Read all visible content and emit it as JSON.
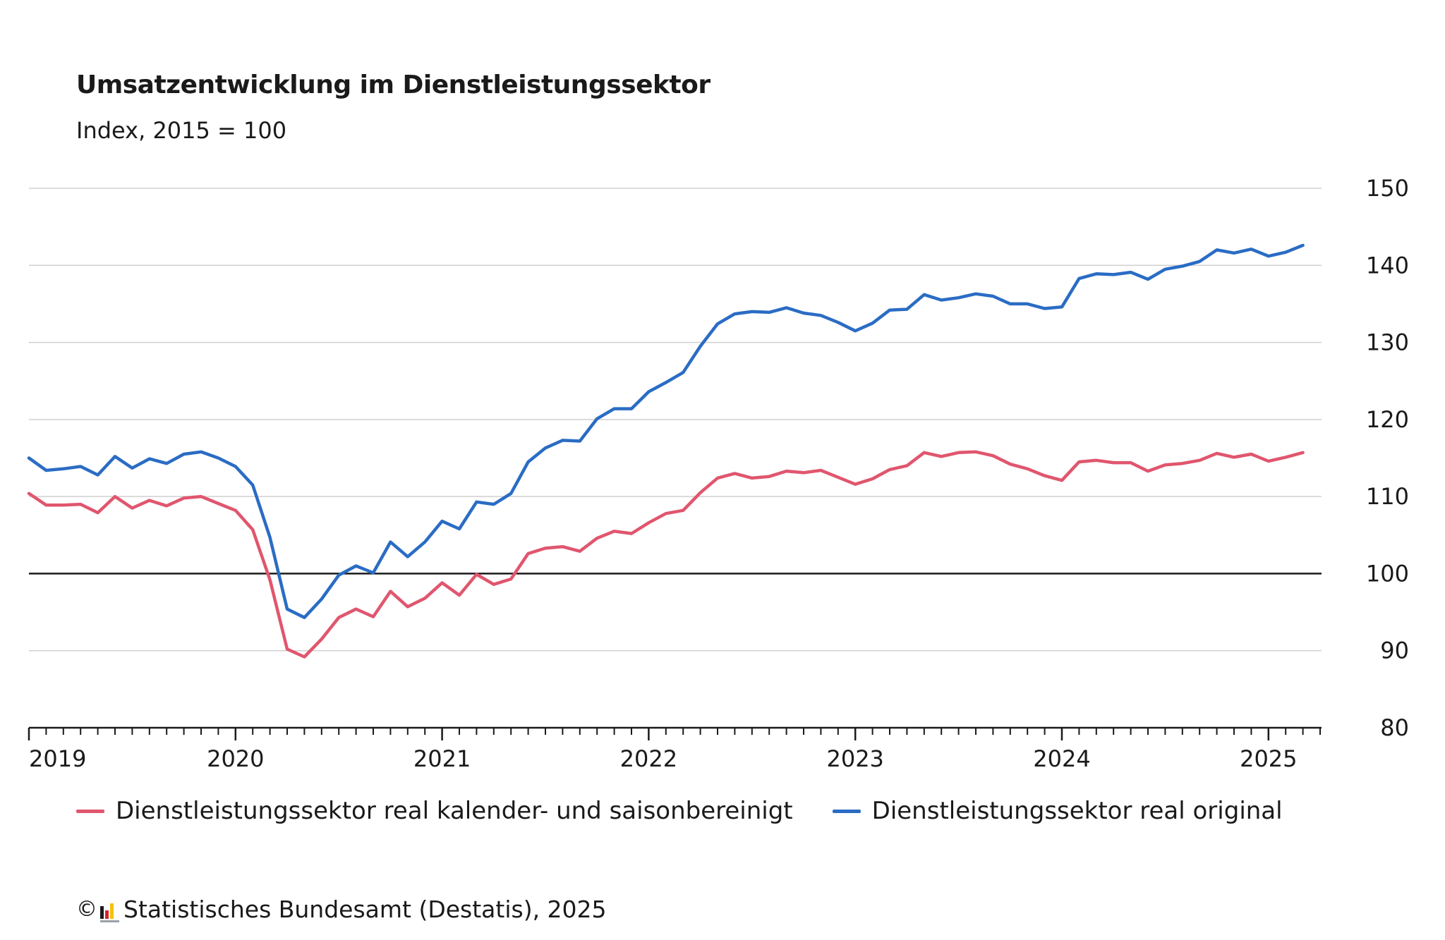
{
  "chart_data": {
    "type": "line",
    "title": "Umsatzentwicklung im Dienstleistungssektor",
    "subtitle": "Index, 2015 = 100",
    "ylim": [
      80,
      150
    ],
    "y_ticks": [
      "150",
      "140",
      "130",
      "120",
      "110",
      "100",
      "90",
      "80"
    ],
    "x_start": "2019-01",
    "x_end": "2025-03",
    "x_ticks": [
      "2019",
      "2020",
      "2021",
      "2022",
      "2023",
      "2024",
      "2025"
    ],
    "reference_line": 100,
    "grid": true,
    "legend_position": "bottom",
    "series": [
      {
        "name": "Dienstleistungssektor real kalender- und saisonbereinigt",
        "color": "#e0566e",
        "values": [
          110.4,
          108.9,
          108.9,
          109.0,
          107.9,
          110.0,
          108.5,
          109.5,
          108.8,
          109.8,
          110.0,
          109.1,
          108.2,
          105.7,
          99.2,
          90.2,
          89.2,
          91.5,
          94.3,
          95.4,
          94.4,
          97.7,
          95.7,
          96.8,
          98.8,
          97.2,
          99.9,
          98.6,
          99.3,
          102.6,
          103.3,
          103.5,
          102.9,
          104.6,
          105.5,
          105.2,
          106.6,
          107.8,
          108.2,
          110.5,
          112.4,
          113.0,
          112.4,
          112.6,
          113.3,
          113.1,
          113.4,
          112.5,
          111.6,
          112.3,
          113.5,
          114.0,
          115.7,
          115.2,
          115.7,
          115.8,
          115.3,
          114.2,
          113.6,
          112.7,
          112.1,
          114.5,
          114.7,
          114.4,
          114.4,
          113.3,
          114.1,
          114.3,
          114.7,
          115.6,
          115.1,
          115.5,
          114.6,
          115.1,
          115.7
        ]
      },
      {
        "name": "Dienstleistungssektor real original",
        "color": "#2a6cc4",
        "values": [
          115.0,
          113.4,
          113.6,
          113.9,
          112.8,
          115.2,
          113.7,
          114.9,
          114.3,
          115.5,
          115.8,
          115.0,
          113.9,
          111.5,
          104.7,
          95.4,
          94.3,
          96.7,
          99.8,
          101.0,
          100.1,
          104.1,
          102.2,
          104.1,
          106.8,
          105.8,
          109.3,
          109.0,
          110.4,
          114.5,
          116.3,
          117.3,
          117.2,
          120.1,
          121.4,
          121.4,
          123.6,
          124.8,
          126.1,
          129.5,
          132.4,
          133.7,
          134.0,
          133.9,
          134.5,
          133.8,
          133.5,
          132.6,
          131.5,
          132.5,
          134.2,
          134.3,
          136.2,
          135.5,
          135.8,
          136.3,
          136.0,
          135.0,
          135.0,
          134.4,
          134.6,
          138.3,
          138.9,
          138.8,
          139.1,
          138.2,
          139.5,
          139.9,
          140.5,
          142.0,
          141.6,
          142.1,
          141.2,
          141.7,
          142.6
        ]
      }
    ]
  },
  "footer": {
    "copyright_symbol": "©",
    "source": "Statistisches Bundesamt (Destatis), 2025"
  }
}
